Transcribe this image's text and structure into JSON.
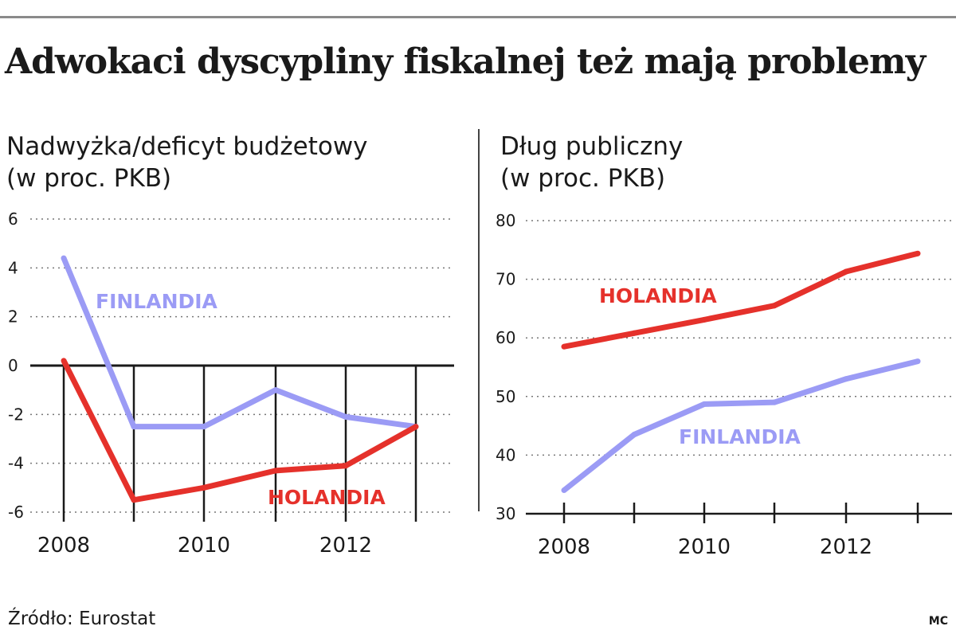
{
  "title": "Adwokaci dyscypliny fiskalnej też mają problemy",
  "source": "Źródło: Eurostat",
  "credit": "MC",
  "colors": {
    "finlandia": "#9b9bf5",
    "holandia": "#e5312b",
    "grid": "#777777",
    "axis": "#1a1a1a"
  },
  "chart_data": [
    {
      "type": "line",
      "subtitle_line1": "Nadwyżka/deficyt budżetowy",
      "subtitle_line2": "(w proc. PKB)",
      "x": [
        2008,
        2009,
        2010,
        2011,
        2012,
        2013
      ],
      "xticks": [
        "2008",
        "2010",
        "2012"
      ],
      "yticks": [
        "6",
        "4",
        "2",
        "0",
        "-2",
        "-4",
        "-6"
      ],
      "ylim": [
        -6,
        6
      ],
      "grid": "dotted horizontal",
      "series": [
        {
          "name": "FINLANDIA",
          "values": [
            4.4,
            -2.5,
            -2.5,
            -1.0,
            -2.1,
            -2.5
          ]
        },
        {
          "name": "HOLANDIA",
          "values": [
            0.2,
            -5.5,
            -5.0,
            -4.3,
            -4.1,
            -2.5
          ]
        }
      ]
    },
    {
      "type": "line",
      "subtitle_line1": "Dług publiczny",
      "subtitle_line2": "(w proc. PKB)",
      "x": [
        2008,
        2009,
        2010,
        2011,
        2012,
        2013
      ],
      "xticks": [
        "2008",
        "2010",
        "2012"
      ],
      "yticks": [
        "80",
        "70",
        "60",
        "50",
        "40",
        "30"
      ],
      "ylim": [
        30,
        80
      ],
      "grid": "dotted horizontal",
      "series": [
        {
          "name": "HOLANDIA",
          "values": [
            58.5,
            60.8,
            63.1,
            65.5,
            71.3,
            74.4
          ]
        },
        {
          "name": "FINLANDIA",
          "values": [
            34.0,
            43.5,
            48.7,
            49.0,
            53.0,
            56.0
          ]
        }
      ]
    }
  ]
}
